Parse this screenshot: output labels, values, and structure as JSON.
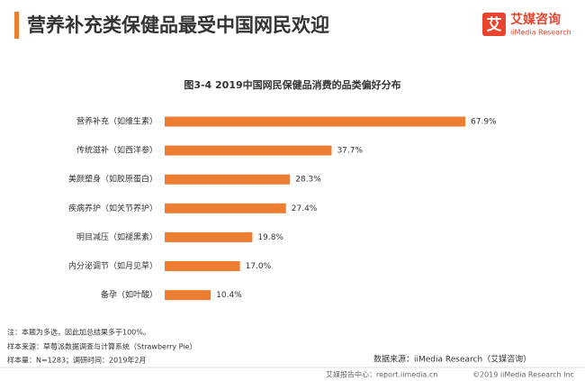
{
  "header": {
    "title": "营养补充类保健品最受中国网民欢迎",
    "logo_mark": "艾",
    "logo_name": "艾媒咨询",
    "logo_sub": "iiMedia Research"
  },
  "chart_data": {
    "type": "bar",
    "orientation": "horizontal",
    "title": "图3-4 2019中国网民保健品消费的品类偏好分布",
    "categories": [
      "营养补充（如维生素）",
      "传统滋补（如西洋参）",
      "美颜塑身（如胶原蛋白）",
      "疾病养护（如关节养护）",
      "明目减压（如褪黑素）",
      "内分泌调节（如月见草）",
      "备孕（如叶酸）"
    ],
    "values": [
      67.9,
      37.7,
      28.3,
      27.4,
      19.8,
      17.0,
      10.4
    ],
    "value_labels": [
      "67.9%",
      "37.7%",
      "28.3%",
      "27.4%",
      "19.8%",
      "17.0%",
      "10.4%"
    ],
    "color": "#ed7d31"
  },
  "notes": [
    "注：本题为多选，因此加总结果多于100%。",
    "样本来源：草莓派数据调查与计算系统（Strawberry Pie）",
    "样本量：N=1283；调研时间：2019年2月"
  ],
  "source": "数据来源：iiMedia Research（艾媒咨询）",
  "footer": {
    "center": "艾媒报告中心：report.iimedia.cn",
    "copyright": "©2019  iiMedia Research  Inc"
  }
}
